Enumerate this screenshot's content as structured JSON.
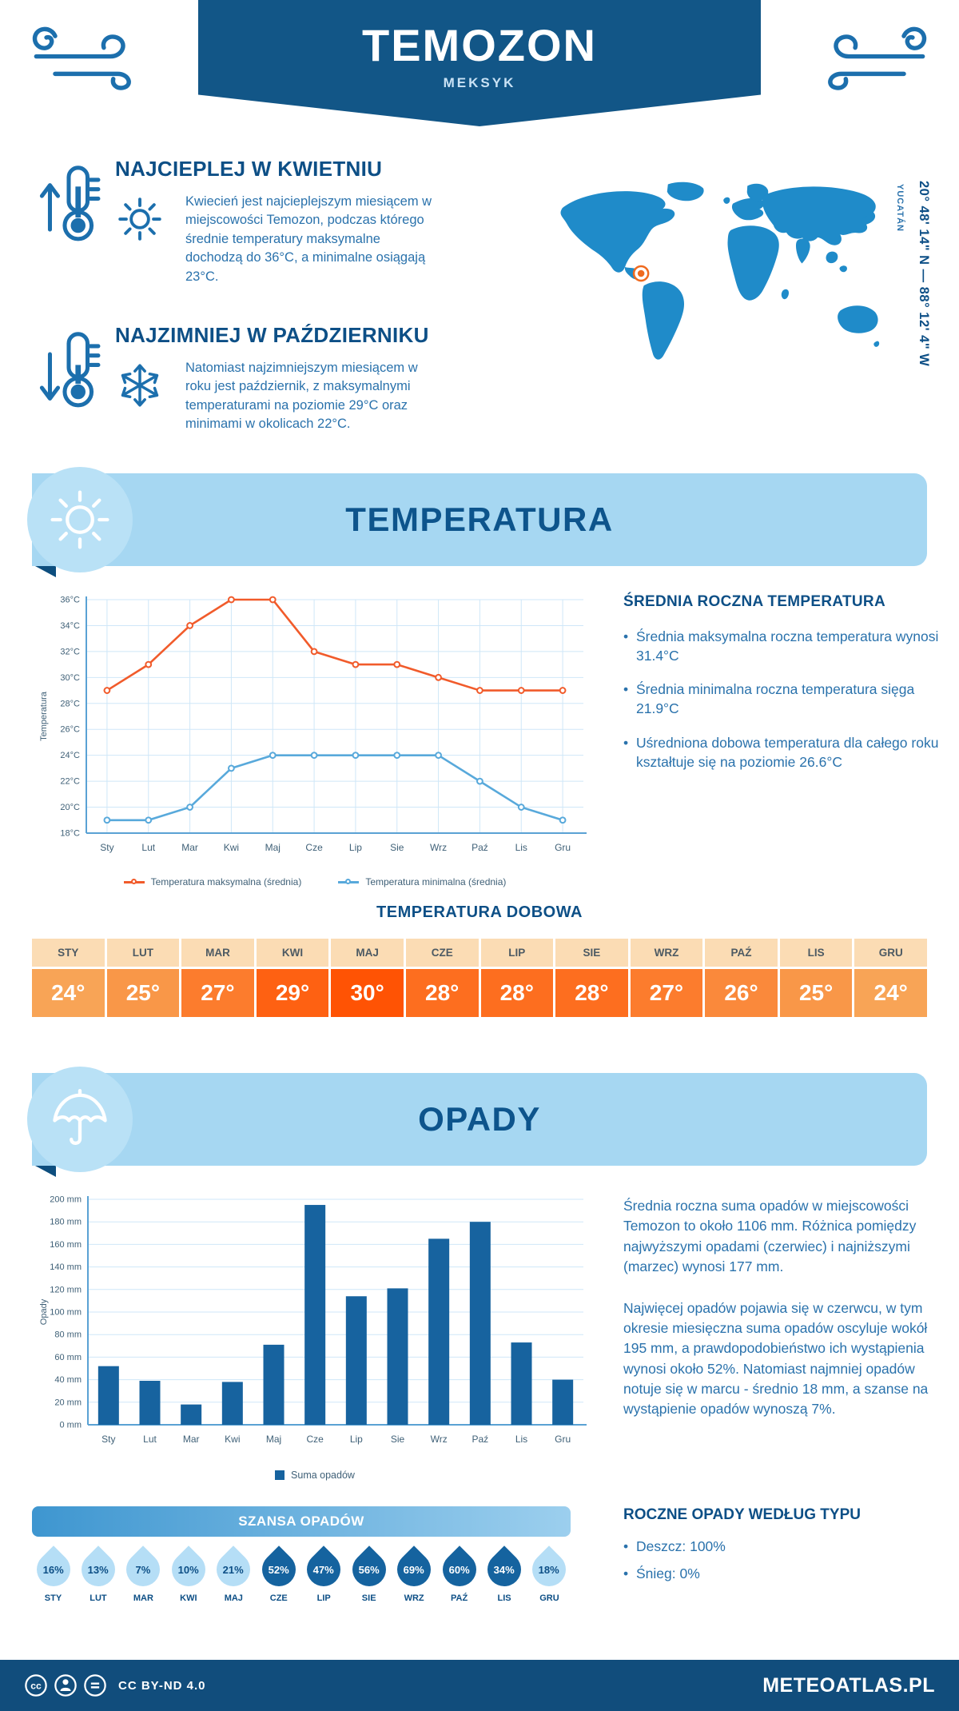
{
  "header": {
    "title": "TEMOZON",
    "subtitle": "MEKSYK"
  },
  "map": {
    "region": "YUCATÁN",
    "coords": "20° 48' 14\" N — 88° 12' 4\" W"
  },
  "intro": {
    "warm": {
      "heading": "NAJCIEPLEJ W KWIETNIU",
      "text": "Kwiecień jest najcieplejszym miesiącem w miejscowości Temozon, podczas którego średnie temperatury maksymalne dochodzą do 36°C, a minimalne osiągają 23°C."
    },
    "cold": {
      "heading": "NAJZIMNIEJ W PAŹDZIERNIKU",
      "text": "Natomiast najzimniejszym miesiącem w roku jest październik, z maksymalnymi temperaturami na poziomie 29°C oraz minimami w okolicach 22°C."
    }
  },
  "temperature": {
    "banner_title": "TEMPERATURA",
    "right_heading": "ŚREDNIA ROCZNA TEMPERATURA",
    "bullets": [
      "Średnia maksymalna roczna temperatura wynosi 31.4°C",
      "Średnia minimalna roczna temperatura sięga 21.9°C",
      "Uśredniona dobowa temperatura dla całego roku kształtuje się na poziomie 26.6°C"
    ]
  },
  "daily": {
    "heading": "TEMPERATURA DOBOWA",
    "months": [
      "STY",
      "LUT",
      "MAR",
      "KWI",
      "MAJ",
      "CZE",
      "LIP",
      "SIE",
      "WRZ",
      "PAŹ",
      "LIS",
      "GRU"
    ],
    "values": [
      "24°",
      "25°",
      "27°",
      "29°",
      "30°",
      "28°",
      "28°",
      "28°",
      "27°",
      "26°",
      "25°",
      "24°"
    ]
  },
  "precip": {
    "banner_title": "OPADY",
    "legend": "Suma opadów",
    "paragraph1": "Średnia roczna suma opadów w miejscowości Temozon to około 1106 mm. Różnica pomiędzy najwyższymi opadami (czerwiec) i najniższymi (marzec) wynosi 177 mm.",
    "paragraph2": "Najwięcej opadów pojawia się w czerwcu, w tym okresie miesięczna suma opadów oscyluje wokół 195 mm, a prawdopodobieństwo ich wystąpienia wynosi około 52%. Natomiast najmniej opadów notuje się w marcu - średnio 18 mm, a szanse na wystąpienie opadów wynoszą 7%."
  },
  "chance": {
    "heading": "SZANSA OPADÓW",
    "months": [
      "STY",
      "LUT",
      "MAR",
      "KWI",
      "MAJ",
      "CZE",
      "LIP",
      "SIE",
      "WRZ",
      "PAŹ",
      "LIS",
      "GRU"
    ],
    "values": [
      "16%",
      "13%",
      "7%",
      "10%",
      "21%",
      "52%",
      "47%",
      "56%",
      "69%",
      "60%",
      "34%",
      "18%"
    ]
  },
  "type": {
    "heading": "ROCZNE OPADY WEDŁUG TYPU",
    "bullets": [
      "Deszcz: 100%",
      "Śnieg: 0%"
    ]
  },
  "footer": {
    "license": "CC BY-ND 4.0",
    "site": "METEOATLAS.PL"
  },
  "colors": {
    "dark_blue": "#125687",
    "light_banner": "#a6d7f2",
    "max_line": "#f15b2b",
    "min_line": "#58a9db",
    "bar": "#17639f",
    "marker_orange": "#ef6a1f"
  },
  "chart_data": [
    {
      "type": "line",
      "title": "TEMPERATURA",
      "ylabel": "Temperatura",
      "categories": [
        "Sty",
        "Lut",
        "Mar",
        "Kwi",
        "Maj",
        "Cze",
        "Lip",
        "Sie",
        "Wrz",
        "Paź",
        "Lis",
        "Gru"
      ],
      "series": [
        {
          "name": "Temperatura maksymalna (średnia)",
          "color": "#f15b2b",
          "values": [
            29,
            31,
            34,
            36,
            36,
            32,
            31,
            31,
            30,
            29,
            29,
            29
          ]
        },
        {
          "name": "Temperatura minimalna (średnia)",
          "color": "#58a9db",
          "values": [
            19,
            19,
            20,
            23,
            24,
            24,
            24,
            24,
            24,
            22,
            20,
            19
          ]
        }
      ],
      "ylim": [
        18,
        36
      ],
      "ytick": 2,
      "yunit": "°C",
      "vgrid": true,
      "legend_position": "bottom"
    },
    {
      "type": "bar",
      "title": "OPADY",
      "ylabel": "Opady",
      "categories": [
        "Sty",
        "Lut",
        "Mar",
        "Kwi",
        "Maj",
        "Cze",
        "Lip",
        "Sie",
        "Wrz",
        "Paź",
        "Lis",
        "Gru"
      ],
      "values": [
        52,
        39,
        18,
        38,
        71,
        195,
        114,
        121,
        165,
        180,
        73,
        40
      ],
      "ylim": [
        0,
        200
      ],
      "ytick": 20,
      "yunit": " mm",
      "vgrid": false,
      "bar_color": "#17639f",
      "legend": "Suma opadów",
      "legend_position": "bottom"
    }
  ]
}
